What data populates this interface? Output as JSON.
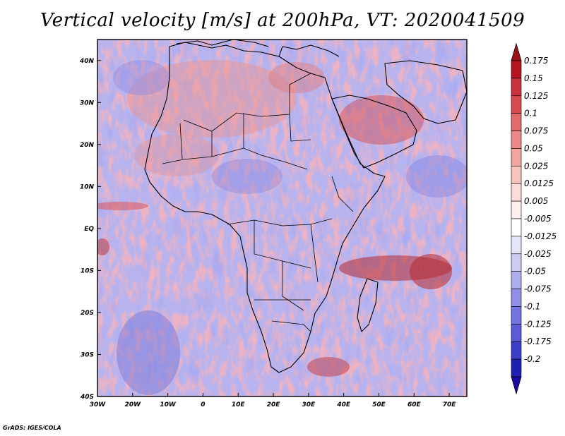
{
  "title": "Vertical velocity [m/s] at 200hPa, VT: 2020041509",
  "footer": "GrADS: IGES/COLA",
  "map": {
    "lon_range": [
      -30,
      75
    ],
    "lat_range": [
      -40,
      45
    ],
    "x_ticks": [
      {
        "lon": -30,
        "label": "30W"
      },
      {
        "lon": -20,
        "label": "20W"
      },
      {
        "lon": -10,
        "label": "10W"
      },
      {
        "lon": 0,
        "label": "0"
      },
      {
        "lon": 10,
        "label": "10E"
      },
      {
        "lon": 20,
        "label": "20E"
      },
      {
        "lon": 30,
        "label": "30E"
      },
      {
        "lon": 40,
        "label": "40E"
      },
      {
        "lon": 50,
        "label": "50E"
      },
      {
        "lon": 60,
        "label": "60E"
      },
      {
        "lon": 70,
        "label": "70E"
      }
    ],
    "y_ticks": [
      {
        "lat": 40,
        "label": "40N"
      },
      {
        "lat": 30,
        "label": "30N"
      },
      {
        "lat": 20,
        "label": "20N"
      },
      {
        "lat": 10,
        "label": "10N"
      },
      {
        "lat": 0,
        "label": "EQ"
      },
      {
        "lat": -10,
        "label": "10S"
      },
      {
        "lat": -20,
        "label": "20S"
      },
      {
        "lat": -30,
        "label": "30S"
      },
      {
        "lat": -40,
        "label": "40S"
      }
    ]
  },
  "colorbar": {
    "levels": [
      {
        "label": "0.175",
        "color": "#b4141e"
      },
      {
        "label": "0.15",
        "color": "#c8323c"
      },
      {
        "label": "0.125",
        "color": "#d74a50"
      },
      {
        "label": "0.1",
        "color": "#e26a6a"
      },
      {
        "label": "0.075",
        "color": "#eb8a88"
      },
      {
        "label": "0.05",
        "color": "#f2a6a2"
      },
      {
        "label": "0.025",
        "color": "#f8c4c0"
      },
      {
        "label": "0.0125",
        "color": "#fcdcd8"
      },
      {
        "label": "0.005",
        "color": "#fff0ee"
      },
      {
        "label": "-0.005",
        "color": "#ffffff"
      },
      {
        "label": "-0.0125",
        "color": "#e6e6fa"
      },
      {
        "label": "-0.025",
        "color": "#ccccf5"
      },
      {
        "label": "-0.05",
        "color": "#aeaeef"
      },
      {
        "label": "-0.075",
        "color": "#9090e8"
      },
      {
        "label": "-0.1",
        "color": "#7474e0"
      },
      {
        "label": "-0.125",
        "color": "#5a5ad6"
      },
      {
        "label": "-0.175",
        "color": "#3c3cc8"
      },
      {
        "label": "-0.2",
        "color": "#2020b0"
      }
    ],
    "top_arrow_color": "#a0101a",
    "bottom_arrow_color": "#1a0aa0"
  }
}
